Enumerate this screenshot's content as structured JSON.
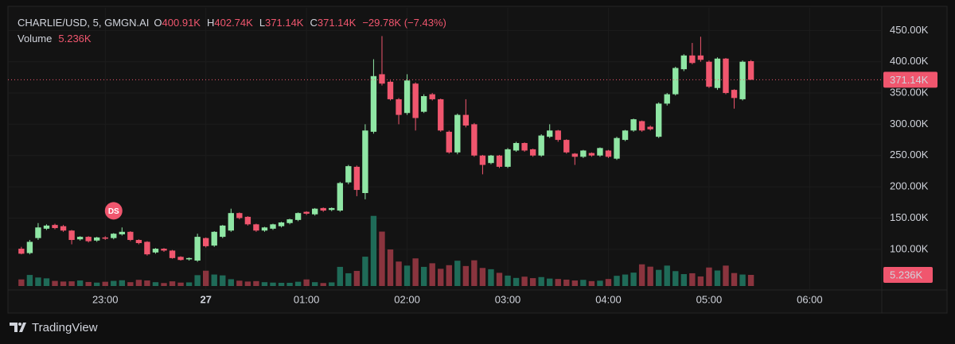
{
  "chart_data": {
    "type": "candlestick",
    "symbol": "CHARLIE/USD, 5, GMGN.AI",
    "legend_ohlc": [
      {
        "key": "O",
        "value": "400.91K"
      },
      {
        "key": "H",
        "value": "402.74K"
      },
      {
        "key": "L",
        "value": "371.14K"
      },
      {
        "key": "C",
        "value": "371.14K"
      }
    ],
    "change": "−29.78K (−7.43%)",
    "volume_title": "Volume",
    "volume_current": "5.236K",
    "annotations": [
      {
        "text": "DS",
        "x": "23:05"
      }
    ],
    "x": [
      "22:10",
      "22:15",
      "22:20",
      "22:25",
      "22:30",
      "22:35",
      "22:40",
      "22:45",
      "22:50",
      "22:55",
      "23:00",
      "23:05",
      "23:10",
      "23:15",
      "23:20",
      "23:25",
      "23:30",
      "23:35",
      "23:40",
      "23:45",
      "23:50",
      "23:55",
      "00:00",
      "00:05",
      "00:10",
      "00:15",
      "00:20",
      "00:25",
      "00:30",
      "00:35",
      "00:40",
      "00:45",
      "00:50",
      "00:55",
      "01:00",
      "01:05",
      "01:10",
      "01:15",
      "01:20",
      "01:25",
      "01:30",
      "01:35",
      "01:40",
      "01:45",
      "01:50",
      "01:55",
      "02:00",
      "02:05",
      "02:10",
      "02:15",
      "02:20",
      "02:25",
      "02:30",
      "02:35",
      "02:40",
      "02:45",
      "02:50",
      "02:55",
      "03:00",
      "03:05",
      "03:10",
      "03:15",
      "03:20",
      "03:25",
      "03:30",
      "03:35",
      "03:40",
      "03:45",
      "03:50",
      "03:55",
      "04:00",
      "04:05",
      "04:10",
      "04:15",
      "04:20",
      "04:25",
      "04:30",
      "04:35",
      "04:40",
      "04:45",
      "04:50",
      "04:55",
      "05:00",
      "05:05",
      "05:10",
      "05:15",
      "05:20",
      "05:25"
    ],
    "open": [
      101,
      94,
      118,
      133,
      139,
      137,
      130,
      116,
      120,
      114,
      119,
      118,
      124,
      128,
      115,
      112,
      95,
      101,
      98,
      88,
      84,
      82,
      118,
      106,
      120,
      130,
      158,
      152,
      140,
      130,
      133,
      137,
      142,
      147,
      160,
      156,
      166,
      163,
      162,
      207,
      232,
      190,
      288,
      380,
      368,
      340,
      318,
      365,
      320,
      348,
      340,
      288,
      255,
      315,
      300,
      250,
      238,
      250,
      232,
      258,
      270,
      260,
      250,
      280,
      290,
      275,
      253,
      248,
      254,
      250,
      258,
      245,
      275,
      290,
      305,
      296,
      280,
      333,
      348,
      388,
      410,
      410,
      400,
      358,
      405,
      355,
      340,
      400.91
    ],
    "high": [
      104,
      115,
      142,
      140,
      141,
      139,
      131,
      121,
      121,
      120,
      121,
      126,
      135,
      129,
      116,
      113,
      102,
      102,
      99,
      89,
      87,
      125,
      119,
      129,
      139,
      165,
      159,
      153,
      141,
      136,
      141,
      144,
      149,
      159,
      161,
      166,
      167,
      167,
      208,
      235,
      234,
      300,
      404,
      441,
      370,
      342,
      380,
      367,
      348,
      350,
      341,
      290,
      317,
      340,
      302,
      251,
      251,
      251,
      262,
      272,
      271,
      261,
      284,
      300,
      291,
      276,
      254,
      259,
      255,
      263,
      259,
      280,
      291,
      309,
      306,
      298,
      335,
      350,
      392,
      412,
      430,
      440,
      402,
      407,
      406,
      356,
      402,
      402.74
    ],
    "low": [
      92,
      92,
      115,
      131,
      132,
      128,
      108,
      114,
      111,
      112,
      115,
      116,
      122,
      113,
      108,
      90,
      93,
      96,
      85,
      82,
      82,
      80,
      103,
      104,
      118,
      128,
      148,
      138,
      128,
      128,
      131,
      135,
      140,
      145,
      155,
      154,
      160,
      161,
      160,
      204,
      185,
      180,
      285,
      362,
      338,
      300,
      315,
      290,
      318,
      338,
      288,
      253,
      252,
      295,
      248,
      220,
      236,
      230,
      230,
      256,
      256,
      248,
      248,
      278,
      272,
      253,
      235,
      246,
      248,
      248,
      246,
      243,
      273,
      288,
      288,
      290,
      278,
      330,
      346,
      385,
      396,
      400,
      358,
      355,
      348,
      325,
      338,
      371.14
    ],
    "close": [
      93,
      112,
      135,
      138,
      134,
      130,
      115,
      120,
      113,
      119,
      117,
      125,
      128,
      115,
      110,
      92,
      101,
      98,
      86,
      83,
      86,
      120,
      105,
      128,
      138,
      158,
      150,
      140,
      130,
      135,
      140,
      143,
      148,
      158,
      157,
      165,
      162,
      166,
      206,
      233,
      195,
      290,
      377,
      365,
      340,
      315,
      370,
      310,
      345,
      340,
      290,
      255,
      315,
      298,
      250,
      235,
      250,
      232,
      260,
      270,
      258,
      250,
      282,
      290,
      275,
      255,
      248,
      258,
      250,
      262,
      248,
      278,
      290,
      308,
      290,
      292,
      333,
      348,
      390,
      410,
      398,
      403,
      360,
      405,
      350,
      342,
      400,
      371.14
    ],
    "volume": {
      "name": "Volume",
      "values": [
        3.1,
        5.2,
        4.0,
        3.6,
        2.4,
        2.1,
        2.2,
        2.6,
        1.9,
        1.6,
        2.0,
        2.4,
        2.7,
        1.8,
        2.9,
        2.6,
        1.8,
        1.4,
        2.2,
        1.6,
        1.7,
        5.1,
        7.2,
        5.4,
        5.0,
        3.2,
        2.5,
        2.1,
        2.3,
        1.8,
        1.6,
        1.5,
        1.5,
        2.0,
        3.1,
        1.8,
        1.4,
        1.7,
        9.0,
        6.0,
        7.1,
        13.8,
        33.0,
        25.6,
        17.2,
        11.5,
        9.6,
        13.0,
        9.0,
        10.7,
        8.1,
        9.8,
        11.9,
        9.4,
        12.1,
        8.5,
        7.9,
        6.2,
        4.9,
        3.8,
        4.4,
        3.7,
        4.2,
        3.5,
        3.3,
        3.0,
        2.6,
        2.9,
        2.3,
        2.5,
        3.3,
        4.8,
        5.4,
        6.3,
        10.2,
        9.1,
        7.6,
        9.6,
        7.0,
        5.6,
        6.0,
        4.5,
        8.7,
        7.3,
        9.6,
        6.1,
        5.4,
        5.236
      ]
    },
    "last_price": "371.14K",
    "xlim": [
      "22:02",
      "06:43"
    ],
    "xticks": [
      "23:00",
      {
        "value": "00:00",
        "label": "27"
      },
      "01:00",
      "02:00",
      "03:00",
      "04:00",
      "05:00",
      "06:00"
    ],
    "ylim": [
      35,
      486
    ],
    "yticks": [
      {
        "value": 100,
        "label": "100.00K"
      },
      {
        "value": 150,
        "label": "150.00K"
      },
      {
        "value": 200,
        "label": "200.00K"
      },
      {
        "value": 250,
        "label": "250.00K"
      },
      {
        "value": 300,
        "label": "300.00K"
      },
      {
        "value": 350,
        "label": "350.00K"
      },
      {
        "value": 400,
        "label": "400.00K"
      },
      {
        "value": 450,
        "label": "450.00K"
      }
    ],
    "volume_lim": [
      0,
      40
    ],
    "up_color": "#8fe6a4",
    "down_color": "#f0566e",
    "volume_up_color": "#1f6b58",
    "volume_down_color": "#8a343e",
    "footer": "TradingView"
  }
}
